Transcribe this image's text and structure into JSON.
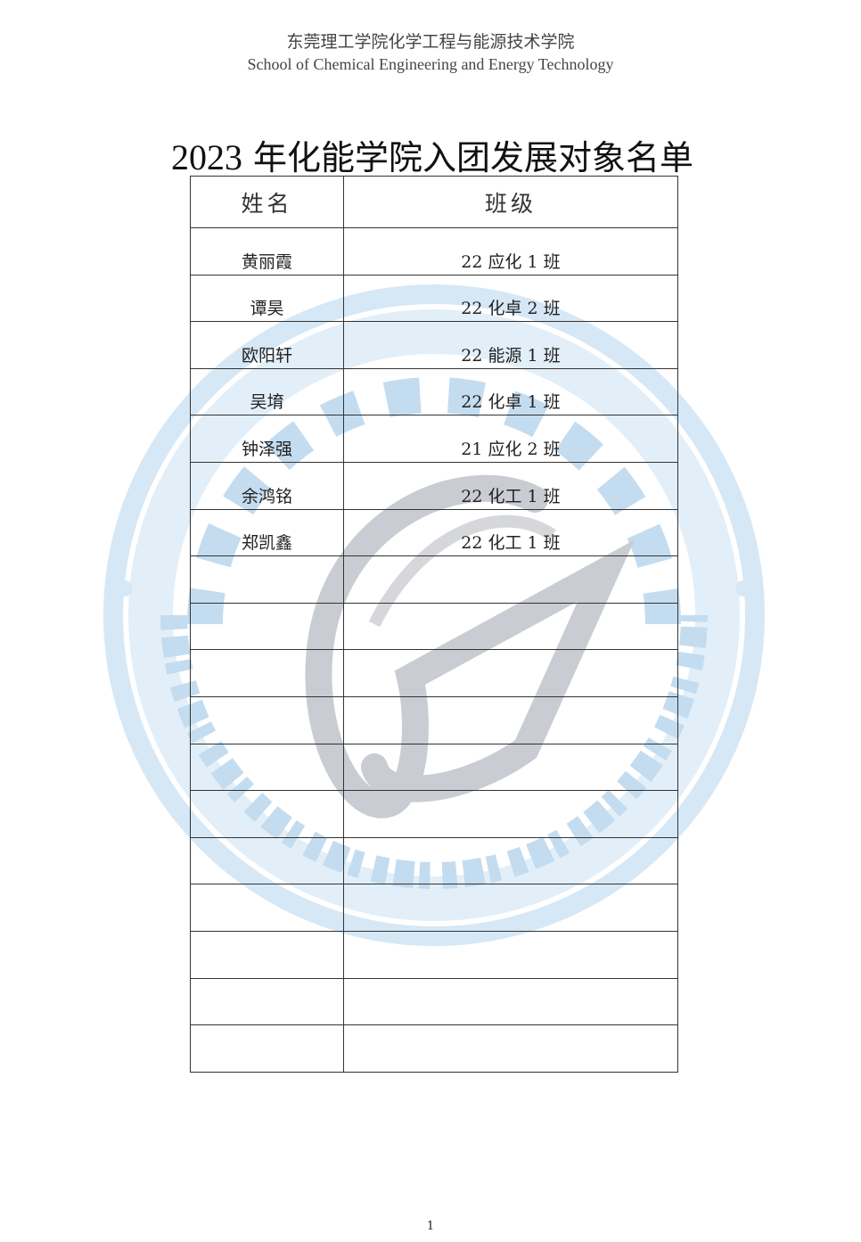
{
  "header": {
    "institution_cn": "东莞理工学院化学工程与能源技术学院",
    "institution_en": "School of Chemical Engineering and Energy Technology"
  },
  "title": {
    "year": "2023",
    "text": "年化能学院入团发展对象名单"
  },
  "table": {
    "columns": [
      "姓名",
      "班级"
    ],
    "rows": [
      {
        "name": "黄丽霞",
        "class": "22 应化 1 班"
      },
      {
        "name": "谭昊",
        "class": "22 化卓 2 班"
      },
      {
        "name": "欧阳轩",
        "class": "22 能源 1 班"
      },
      {
        "name": "吴堉",
        "class": "22 化卓 1 班"
      },
      {
        "name": "钟泽强",
        "class": "21 应化 2 班"
      },
      {
        "name": "余鸿铭",
        "class": "22 化工 1 班"
      },
      {
        "name": "郑凯鑫",
        "class": "22 化工 1 班"
      },
      {
        "name": "",
        "class": ""
      },
      {
        "name": "",
        "class": ""
      },
      {
        "name": "",
        "class": ""
      },
      {
        "name": "",
        "class": ""
      },
      {
        "name": "",
        "class": ""
      },
      {
        "name": "",
        "class": ""
      },
      {
        "name": "",
        "class": ""
      },
      {
        "name": "",
        "class": ""
      },
      {
        "name": "",
        "class": ""
      },
      {
        "name": "",
        "class": ""
      },
      {
        "name": "",
        "class": ""
      }
    ]
  },
  "watermark": {
    "text_cn": "化学工程与能源技术学院",
    "text_en": "School of Chemical Engineering and Energy Technology",
    "color": "#cfe3f3"
  },
  "footer": {
    "page_number": "1"
  }
}
